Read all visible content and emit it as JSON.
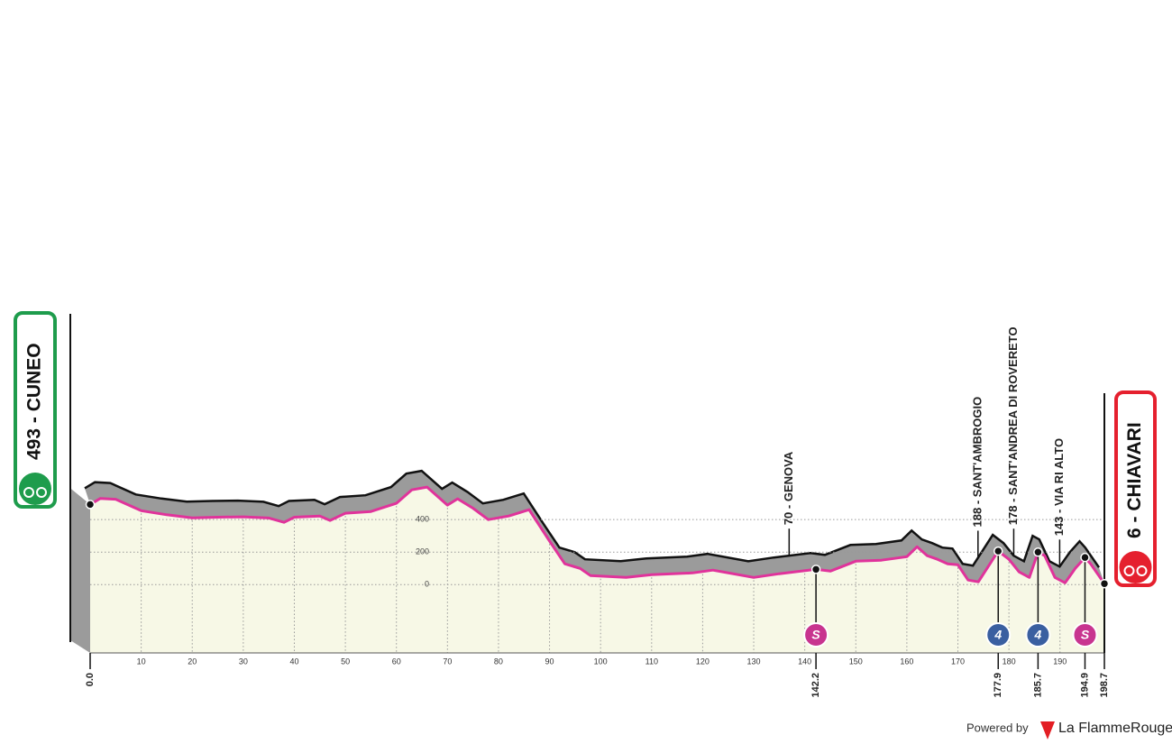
{
  "chart_data": {
    "type": "area",
    "start_label": "493 - CUNEO",
    "finish_label": "6 - CHIAVARI",
    "x": [
      0,
      2,
      5,
      10,
      15,
      20,
      25,
      30,
      35,
      38,
      40,
      45,
      47,
      50,
      55,
      60,
      63,
      66,
      70,
      72,
      75,
      78,
      82,
      86,
      90,
      93,
      96,
      98,
      105,
      110,
      118,
      122,
      130,
      135,
      142.2,
      145,
      150,
      155,
      160,
      162,
      164,
      166,
      168,
      170,
      172,
      174,
      177.9,
      180,
      182,
      184,
      185.7,
      187,
      189,
      191,
      193,
      194.9,
      196,
      198.7
    ],
    "values": [
      493,
      530,
      525,
      455,
      430,
      411,
      415,
      417,
      410,
      383,
      415,
      422,
      395,
      439,
      450,
      500,
      583,
      600,
      489,
      528,
      470,
      400,
      422,
      461,
      267,
      128,
      100,
      56,
      44,
      61,
      72,
      89,
      44,
      67,
      94,
      83,
      144,
      150,
      172,
      233,
      178,
      156,
      128,
      122,
      28,
      17,
      206,
      156,
      78,
      44,
      200,
      178,
      44,
      11,
      100,
      167,
      128,
      6
    ],
    "fill_color": "#f7f8e6",
    "side_color": "#9b9b9b",
    "line_color": "#e0339b",
    "xlim": [
      0,
      198.7
    ],
    "xticks": [
      10,
      20,
      30,
      40,
      50,
      60,
      70,
      80,
      90,
      100,
      110,
      120,
      130,
      140,
      150,
      160,
      170,
      180,
      190
    ],
    "distance_labels": [
      {
        "value": 0,
        "label": "0.0"
      },
      142.2,
      177.9,
      185.7,
      194.9,
      198.7
    ],
    "ylim": [
      -420,
      1000
    ],
    "yticks": [
      400,
      200,
      0
    ],
    "grid": true,
    "points": [
      {
        "km": 142.2,
        "icon": "S",
        "color": "#c8348f"
      },
      {
        "km": 177.9,
        "icon": "4",
        "color": "#3a5fa0"
      },
      {
        "km": 185.7,
        "icon": "4",
        "color": "#3a5fa0"
      },
      {
        "km": 194.9,
        "icon": "S",
        "color": "#c8348f"
      }
    ],
    "annotations": [
      {
        "km": 138,
        "text": "70 - GENOVA"
      },
      {
        "km": 175,
        "text": "188 - SANT'AMBROGIO"
      },
      {
        "km": 182,
        "text": "178 - SANT'ANDREA DI ROVERETO"
      },
      {
        "km": 191,
        "text": "143 - VIA RI ALTO"
      }
    ]
  },
  "footer": {
    "powered": "Powered by",
    "brand": "La FlammeRouge"
  }
}
